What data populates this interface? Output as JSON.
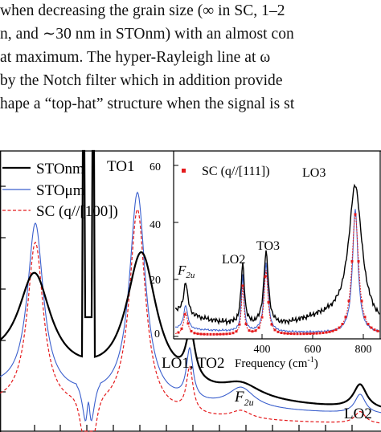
{
  "text_lines": [
    "when decreasing the grain size (∞ in SC, 1–2",
    "n, and ∼30 nm in STOnm) with an almost con",
    "at maximum. The hyper-Rayleigh line at ω",
    "by the Notch filter which in addition provide",
    "hape a “top-hat” structure when the signal is st"
  ],
  "main_plot": {
    "legend": [
      "STOnm",
      "STOμm",
      "SC (q//[100])"
    ],
    "annotations": {
      "to1": "TO1",
      "lo1_to2": "LO1, TO2",
      "f2u": "F",
      "f2u_sub": "2u",
      "lo2": "LO2"
    }
  },
  "inset": {
    "legend": "SC (q//[111])",
    "xlabel": "Frequency (cm",
    "xlabel_sup": "-1",
    "xlabel_end": ")",
    "xticks": [
      "400",
      "600",
      "800"
    ],
    "yticks": [
      "0",
      "20",
      "40",
      "60"
    ],
    "annotations": {
      "f2u": "F",
      "f2u_sub": "2u",
      "lo2": "LO2",
      "to3": "TO3",
      "lo3": "LO3"
    }
  },
  "colors": {
    "stonm": "#000000",
    "stoum": "#3a5fcd",
    "sc": "#e41a1c"
  }
}
